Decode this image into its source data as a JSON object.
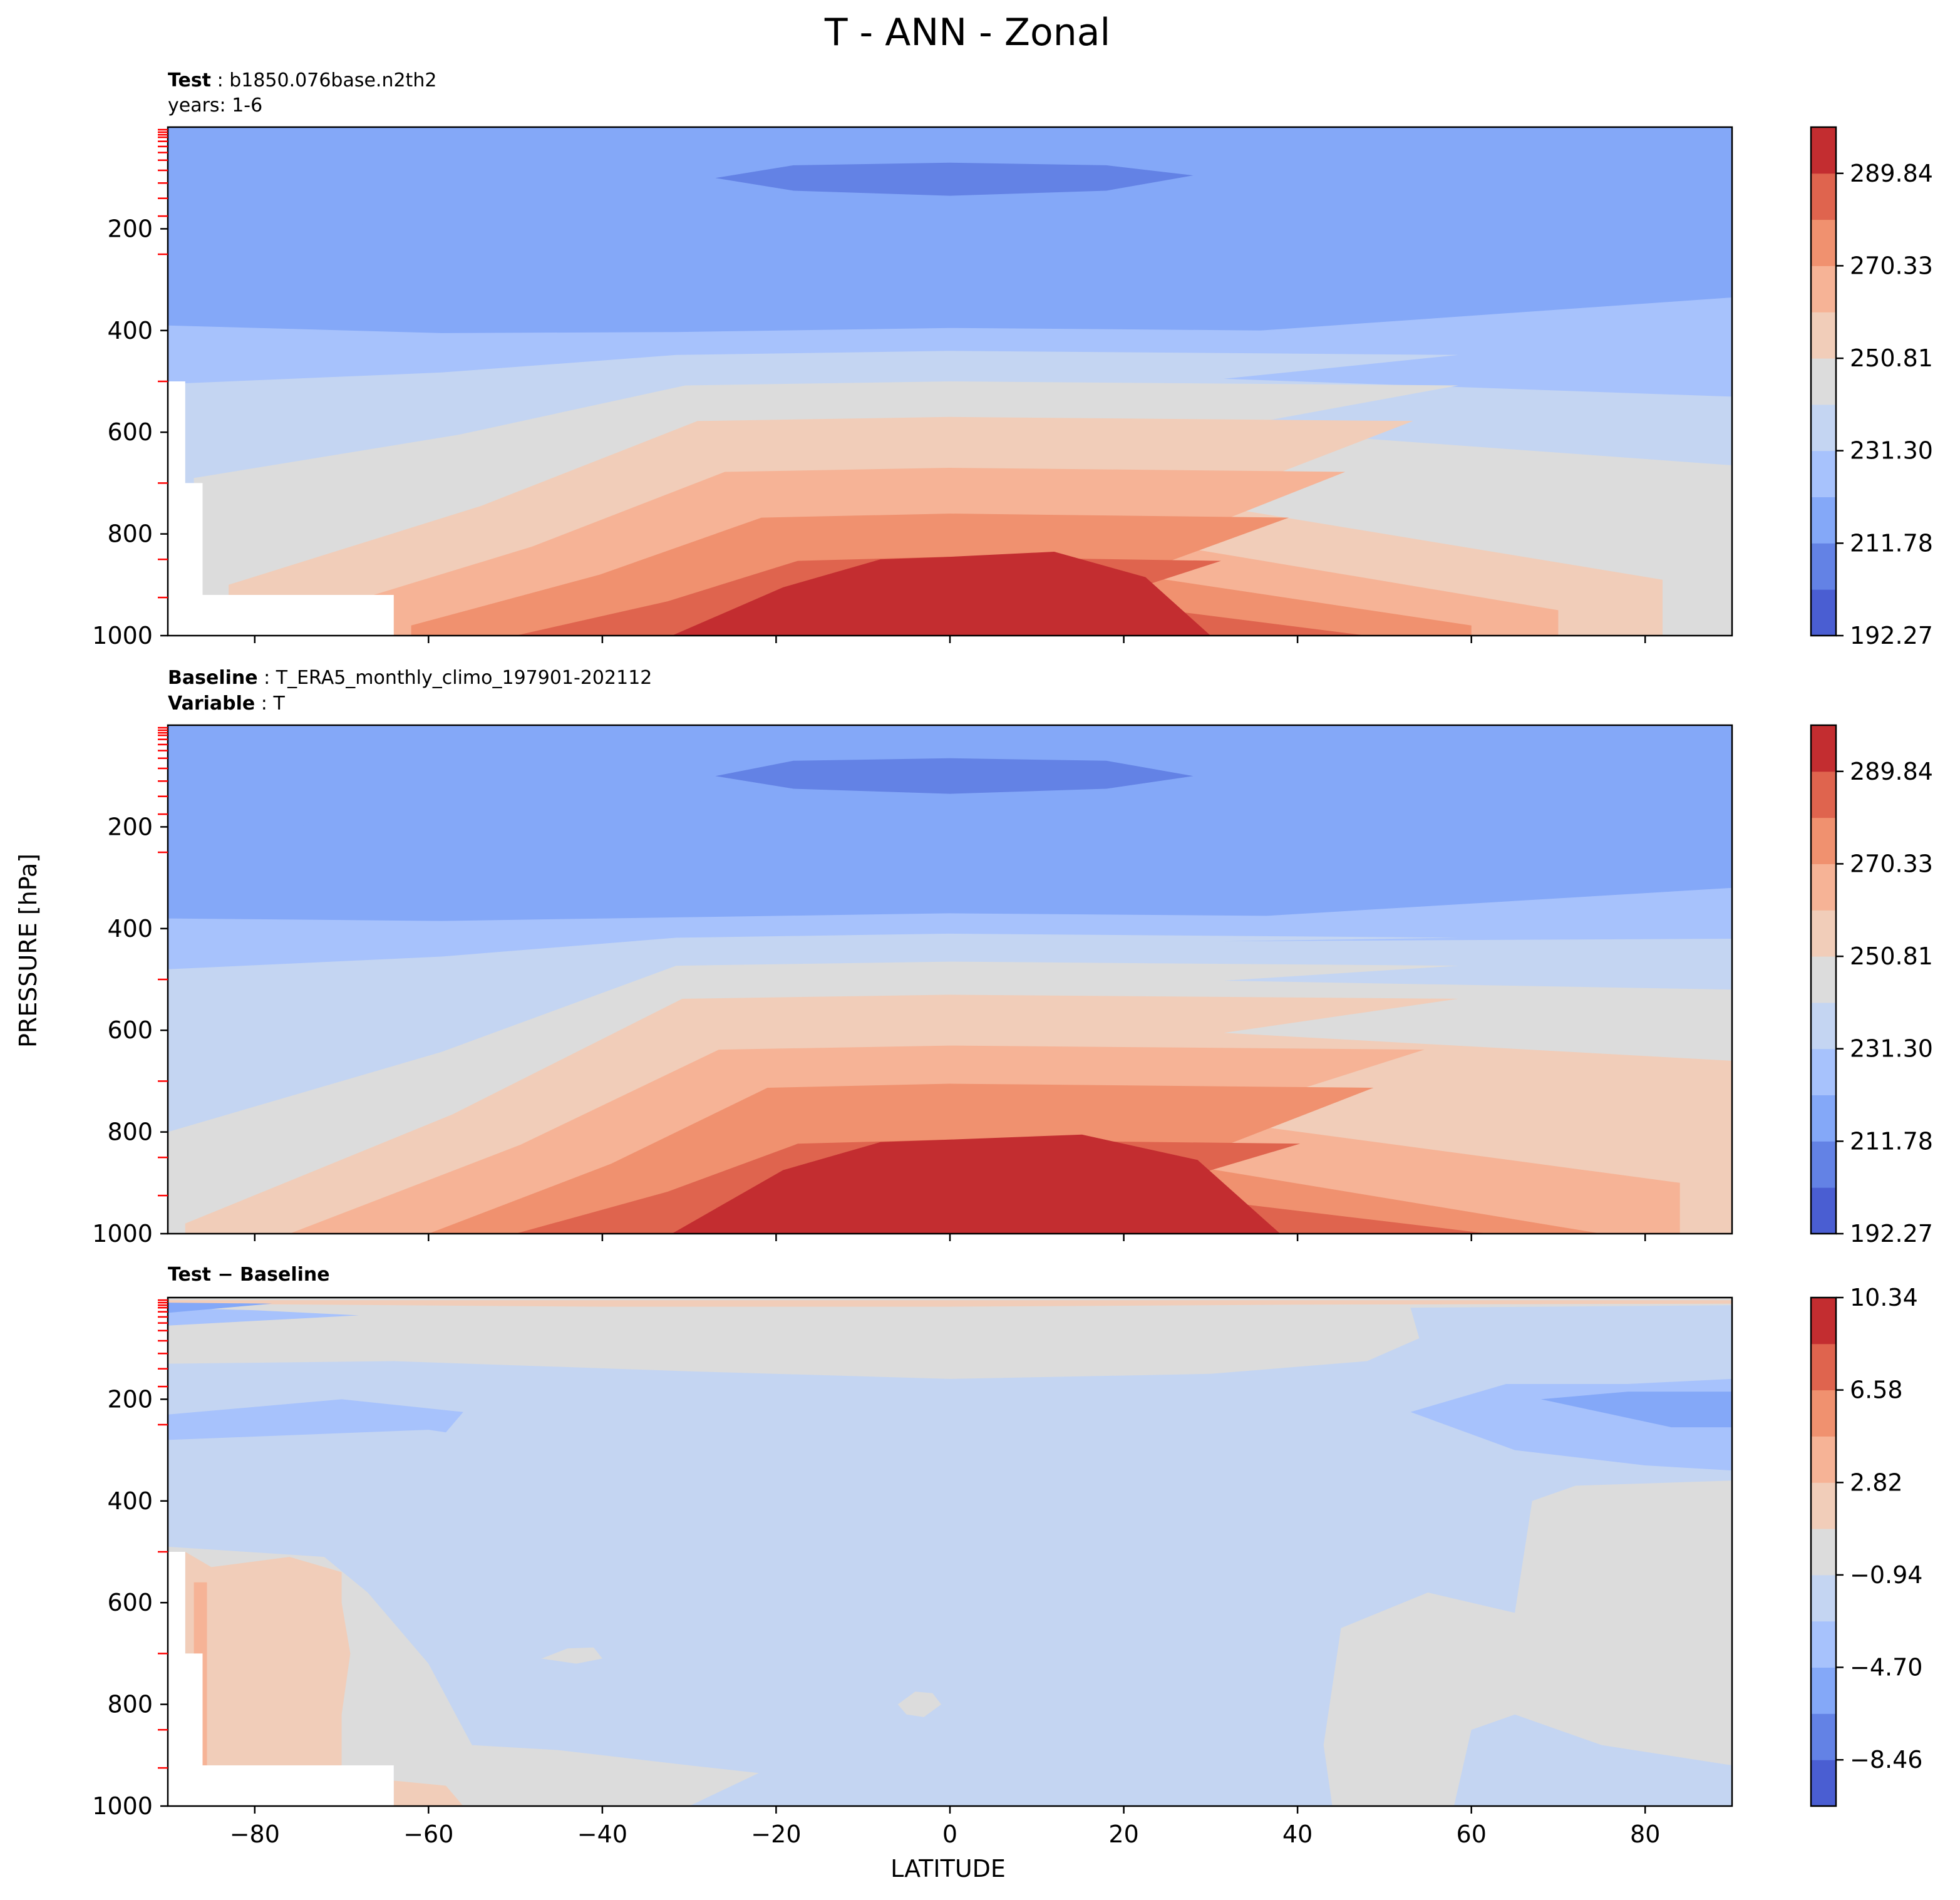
{
  "figure": {
    "title": "T - ANN - Zonal",
    "ylabel": "PRESSURE [hPa]",
    "xlabel": "LATITUDE"
  },
  "panels": [
    {
      "id": "test",
      "header_line1_bold": "Test",
      "header_line1_sep": " : ",
      "header_line1_text": "b1850.076base.n2th2",
      "header_line2_bold": "",
      "header_line2_sep": "",
      "header_line2_text": "years: 1-6"
    },
    {
      "id": "baseline",
      "header_line1_bold": "Baseline",
      "header_line1_sep": " : ",
      "header_line1_text": "T_ERA5_monthly_climo_197901-202112",
      "header_line2_bold": "Variable",
      "header_line2_sep": " : ",
      "header_line2_text": "T"
    },
    {
      "id": "diff",
      "header_line1_bold": "Test − Baseline",
      "header_line1_sep": "",
      "header_line1_text": "",
      "header_line2_bold": "",
      "header_line2_sep": "",
      "header_line2_text": ""
    }
  ],
  "chart_data": [
    {
      "type": "heatmap",
      "panel": "Test",
      "x": {
        "label": "LATITUDE",
        "range": [
          -90,
          90
        ],
        "ticks": [
          -80,
          -60,
          -40,
          -20,
          0,
          20,
          40,
          60,
          80
        ]
      },
      "y": {
        "label": "PRESSURE [hPa]",
        "range": [
          1000,
          0
        ],
        "ticks": [
          200,
          400,
          600,
          800,
          1000
        ]
      },
      "colorbar": {
        "min": 192.27,
        "max": 299.6,
        "levels": 11,
        "tick_values": [
          192.27,
          211.78,
          231.3,
          250.81,
          270.33,
          289.84
        ],
        "tick_labels": [
          "192.27",
          "211.78",
          "231.30",
          "250.81",
          "270.33",
          "289.84"
        ]
      },
      "contours": [
        {
          "level": 2,
          "points": [
            [
              -90,
              300
            ],
            [
              -84,
              290
            ],
            [
              -74,
              270
            ],
            [
              -66,
              250
            ],
            [
              -67,
              200
            ],
            [
              -70,
              160
            ],
            [
              -69,
              40
            ],
            [
              -90,
              30
            ]
          ]
        },
        {
          "level": 2,
          "points": [
            [
              -38,
              80
            ],
            [
              -30,
              60
            ],
            [
              -12,
              58
            ],
            [
              12,
              58
            ],
            [
              30,
              60
            ],
            [
              40,
              72
            ],
            [
              40,
              90
            ],
            [
              30,
              140
            ],
            [
              10,
              175
            ],
            [
              -10,
              175
            ],
            [
              -30,
              148
            ],
            [
              -38,
              100
            ]
          ]
        },
        {
          "level": 1,
          "points": [
            [
              -27,
              100
            ],
            [
              -18,
              75
            ],
            [
              0,
              70
            ],
            [
              18,
              75
            ],
            [
              28,
              95
            ],
            [
              18,
              125
            ],
            [
              0,
              135
            ],
            [
              -18,
              125
            ]
          ]
        }
      ],
      "bands_south": [
        [
          -90,
          390
        ],
        [
          -90,
          505
        ],
        [
          -87,
          690
        ],
        [
          -83,
          900
        ],
        [
          -74,
          960
        ],
        [
          -62,
          980
        ],
        [
          -50,
          1000
        ],
        [
          -42,
          1000
        ],
        [
          -32,
          1000
        ]
      ],
      "bands_north": [
        [
          90,
          335
        ],
        [
          90,
          530
        ],
        [
          90,
          665
        ],
        [
          82,
          890
        ],
        [
          70,
          950
        ],
        [
          60,
          980
        ],
        [
          48,
          1000
        ],
        [
          40,
          1000
        ],
        [
          30,
          1000
        ]
      ],
      "bands_peak": [
        395,
        440,
        500,
        570,
        670,
        760,
        845
      ],
      "masked": [
        [
          -90,
          500
        ],
        [
          -88,
          500
        ],
        [
          -88,
          700
        ],
        [
          -86,
          700
        ],
        [
          -86,
          920
        ],
        [
          -64,
          920
        ],
        [
          -64,
          1000
        ],
        [
          -90,
          1000
        ]
      ]
    },
    {
      "type": "heatmap",
      "panel": "Baseline",
      "x": {
        "label": "LATITUDE",
        "range": [
          -90,
          90
        ],
        "ticks": [
          -80,
          -60,
          -40,
          -20,
          0,
          20,
          40,
          60,
          80
        ]
      },
      "y": {
        "label": "PRESSURE [hPa]",
        "range": [
          1000,
          0
        ],
        "ticks": [
          200,
          400,
          600,
          800,
          1000
        ]
      },
      "colorbar": {
        "min": 192.27,
        "max": 299.6,
        "levels": 11,
        "tick_values": [
          192.27,
          211.78,
          231.3,
          250.81,
          270.33,
          289.84
        ],
        "tick_labels": [
          "192.27",
          "211.78",
          "231.30",
          "250.81",
          "270.33",
          "289.84"
        ]
      },
      "contours": [
        {
          "level": 2,
          "points": [
            [
              -90,
              265
            ],
            [
              -80,
              255
            ],
            [
              -78,
              240
            ],
            [
              -72,
              170
            ],
            [
              -70,
              60
            ],
            [
              -90,
              30
            ]
          ]
        },
        {
          "level": 2,
          "points": [
            [
              -38,
              80
            ],
            [
              -30,
              58
            ],
            [
              -12,
              55
            ],
            [
              12,
              55
            ],
            [
              30,
              58
            ],
            [
              40,
              72
            ],
            [
              40,
              90
            ],
            [
              30,
              140
            ],
            [
              10,
              172
            ],
            [
              -10,
              172
            ],
            [
              -30,
              148
            ],
            [
              -38,
              100
            ]
          ]
        },
        {
          "level": 1,
          "points": [
            [
              -27,
              100
            ],
            [
              -18,
              70
            ],
            [
              0,
              65
            ],
            [
              18,
              70
            ],
            [
              28,
              100
            ],
            [
              18,
              125
            ],
            [
              0,
              135
            ],
            [
              -18,
              125
            ]
          ]
        }
      ],
      "bands_south": [
        [
          -90,
          380
        ],
        [
          -90,
          480
        ],
        [
          -90,
          800
        ],
        [
          -88,
          980
        ],
        [
          -76,
          1000
        ],
        [
          -60,
          1000
        ],
        [
          -50,
          1000
        ],
        [
          -42,
          1000
        ],
        [
          -32,
          1000
        ]
      ],
      "bands_north": [
        [
          90,
          320
        ],
        [
          90,
          420
        ],
        [
          90,
          520
        ],
        [
          90,
          660
        ],
        [
          84,
          900
        ],
        [
          75,
          1000
        ],
        [
          62,
          1000
        ],
        [
          50,
          1000
        ],
        [
          38,
          1000
        ]
      ],
      "bands_peak": [
        370,
        410,
        465,
        530,
        630,
        705,
        815
      ],
      "masked": []
    },
    {
      "type": "heatmap",
      "panel": "Test − Baseline",
      "x": {
        "label": "LATITUDE",
        "range": [
          -90,
          90
        ],
        "ticks": [
          -80,
          -60,
          -40,
          -20,
          0,
          20,
          40,
          60,
          80
        ]
      },
      "y": {
        "label": "PRESSURE [hPa]",
        "range": [
          1000,
          0
        ],
        "ticks": [
          200,
          400,
          600,
          800,
          1000
        ]
      },
      "colorbar": {
        "min": -10.34,
        "max": 10.34,
        "levels": 11,
        "tick_values": [
          -8.46,
          -4.7,
          -0.94,
          2.82,
          6.58,
          10.34
        ],
        "tick_labels": [
          "−8.46",
          "−4.70",
          "−0.94",
          "2.82",
          "6.58",
          "10.34"
        ]
      },
      "background_level": 4,
      "regions": [
        {
          "level": 5,
          "points": [
            [
              -90,
              0
            ],
            [
              90,
              0
            ],
            [
              90,
              15
            ],
            [
              53,
              20
            ],
            [
              54,
              80
            ],
            [
              48,
              125
            ],
            [
              30,
              150
            ],
            [
              0,
              160
            ],
            [
              -30,
              145
            ],
            [
              -64,
              125
            ],
            [
              -90,
              130
            ]
          ]
        },
        {
          "level": 5,
          "points": [
            [
              -90,
              490
            ],
            [
              -72,
              510
            ],
            [
              -67,
              580
            ],
            [
              -60,
              720
            ],
            [
              -55,
              880
            ],
            [
              -45,
              890
            ],
            [
              -30,
              920
            ],
            [
              -22,
              935
            ],
            [
              -30,
              1000
            ],
            [
              -64,
              1000
            ],
            [
              -64,
              920
            ],
            [
              -86,
              920
            ],
            [
              -86,
              700
            ],
            [
              -88,
              700
            ],
            [
              -88,
              500
            ],
            [
              -90,
              500
            ]
          ]
        },
        {
          "level": 5,
          "points": [
            [
              44,
              1000
            ],
            [
              43,
              880
            ],
            [
              45,
              650
            ],
            [
              55,
              580
            ],
            [
              65,
              620
            ],
            [
              67,
              400
            ],
            [
              72,
              370
            ],
            [
              90,
              360
            ],
            [
              90,
              920
            ],
            [
              75,
              880
            ],
            [
              65,
              820
            ],
            [
              60,
              850
            ],
            [
              58,
              1000
            ]
          ]
        },
        {
          "level": 5,
          "points": [
            [
              -6,
              800
            ],
            [
              -4,
              775
            ],
            [
              -2,
              778
            ],
            [
              -1,
              800
            ],
            [
              -3,
              825
            ],
            [
              -5,
              820
            ]
          ]
        },
        {
          "level": 5,
          "points": [
            [
              -47,
              710
            ],
            [
              -44,
              690
            ],
            [
              -41,
              688
            ],
            [
              -40,
              710
            ],
            [
              -43,
              720
            ]
          ]
        },
        {
          "level": 6,
          "points": [
            [
              -88,
              500
            ],
            [
              -85,
              530
            ],
            [
              -76,
              510
            ],
            [
              -70,
              540
            ],
            [
              -70,
              600
            ],
            [
              -69,
              700
            ],
            [
              -70,
              820
            ],
            [
              -70,
              930
            ],
            [
              -78,
              950
            ],
            [
              -86,
              920
            ],
            [
              -86,
              700
            ],
            [
              -88,
              700
            ]
          ]
        },
        {
          "level": 6,
          "points": [
            [
              -90,
              5
            ],
            [
              90,
              5
            ],
            [
              90,
              12
            ],
            [
              40,
              14
            ],
            [
              0,
              18
            ],
            [
              -40,
              18
            ],
            [
              -90,
              12
            ]
          ]
        },
        {
          "level": 6,
          "points": [
            [
              -64,
              950
            ],
            [
              -58,
              960
            ],
            [
              -56,
              1000
            ],
            [
              -64,
              1000
            ]
          ]
        },
        {
          "level": 3,
          "points": [
            [
              -90,
              230
            ],
            [
              -70,
              200
            ],
            [
              -56,
              225
            ],
            [
              -58,
              265
            ],
            [
              -60,
              260
            ],
            [
              -90,
              280
            ]
          ]
        },
        {
          "level": 3,
          "points": [
            [
              -90,
              20
            ],
            [
              -80,
              25
            ],
            [
              -68,
              35
            ],
            [
              -90,
              55
            ]
          ]
        },
        {
          "level": 3,
          "points": [
            [
              53,
              225
            ],
            [
              64,
              170
            ],
            [
              78,
              170
            ],
            [
              90,
              160
            ],
            [
              90,
              340
            ],
            [
              80,
              330
            ],
            [
              65,
              300
            ]
          ]
        },
        {
          "level": 2,
          "points": [
            [
              68,
              200
            ],
            [
              78,
              185
            ],
            [
              90,
              185
            ],
            [
              90,
              255
            ],
            [
              83,
              255
            ]
          ]
        },
        {
          "level": 2,
          "points": [
            [
              -90,
              10
            ],
            [
              -78,
              12
            ],
            [
              -90,
              30
            ]
          ]
        },
        {
          "level": 7,
          "points": [
            [
              -87,
              560
            ],
            [
              -85.5,
              560
            ],
            [
              -85.5,
              960
            ],
            [
              -87,
              960
            ]
          ]
        }
      ],
      "masked": [
        [
          -90,
          500
        ],
        [
          -88,
          500
        ],
        [
          -88,
          700
        ],
        [
          -86,
          700
        ],
        [
          -86,
          920
        ],
        [
          -64,
          920
        ],
        [
          -64,
          1000
        ],
        [
          -90,
          1000
        ]
      ]
    }
  ],
  "colormaps": {
    "coolwarm11": [
      "#4a5ed2",
      "#6382e5",
      "#84a8f8",
      "#a7c2fc",
      "#c4d5f2",
      "#dcdcdc",
      "#f1cdb9",
      "#f6b396",
      "#f0916f",
      "#df644e",
      "#c32d30"
    ]
  },
  "style": {
    "frame_color": "#000000",
    "minor_tick_color": "#ff0000",
    "mask_color": "#ffffff"
  }
}
